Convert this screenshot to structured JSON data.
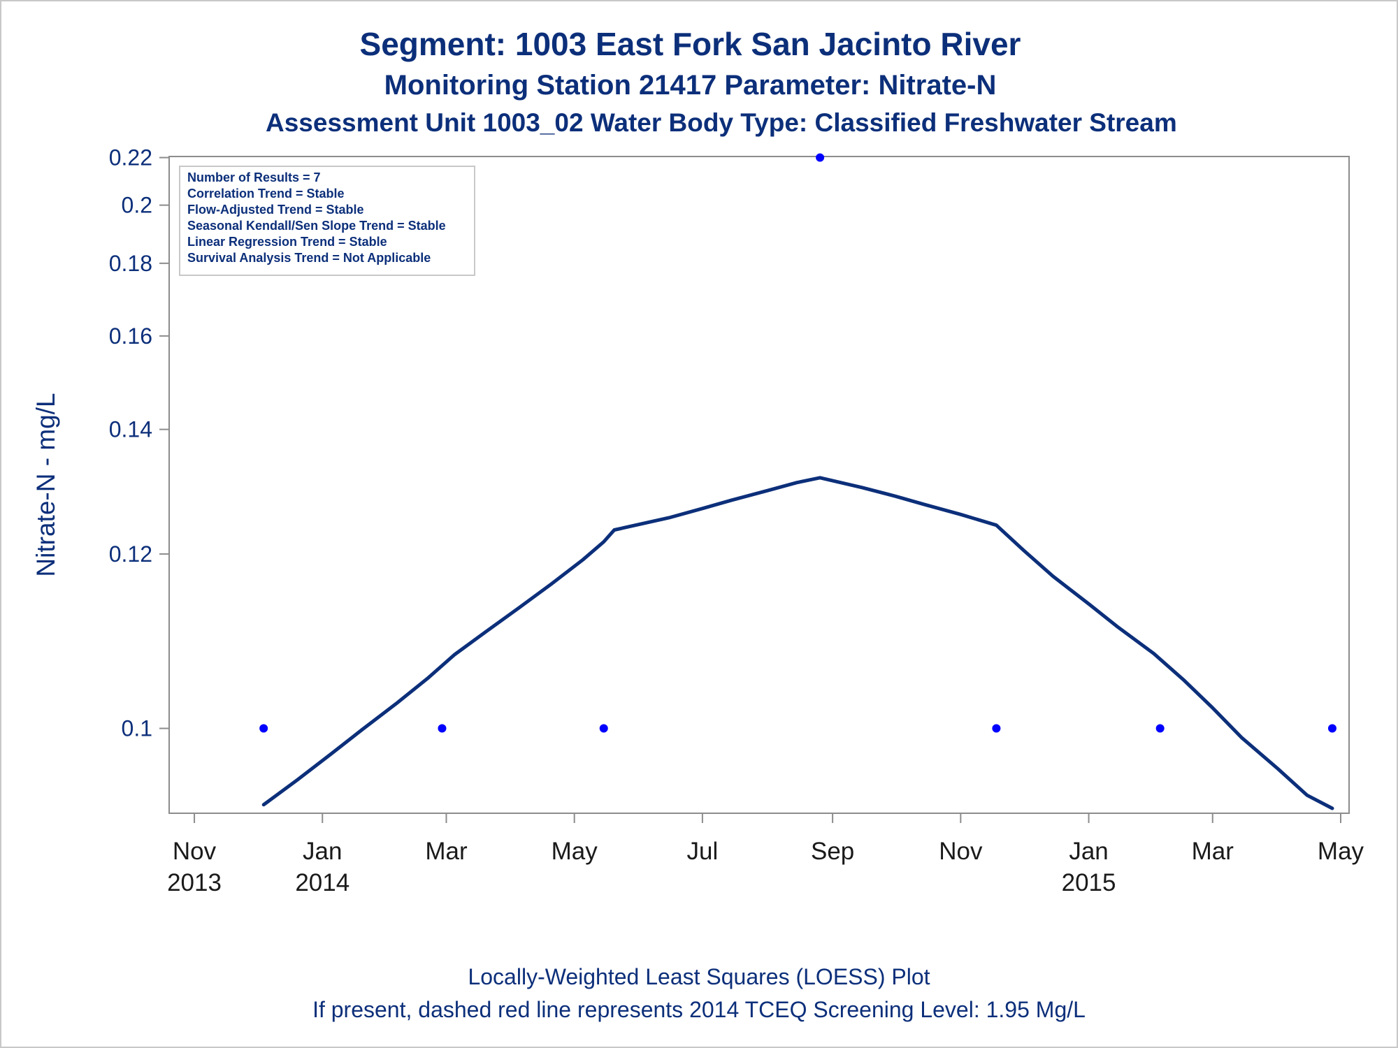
{
  "titles": {
    "line1": "Segment: 1003  East Fork San Jacinto River",
    "line2": "Monitoring Station 21417 Parameter: Nitrate-N",
    "line3": "Assessment Unit 1003_02   Water Body Type: Classified Freshwater Stream"
  },
  "footnotes": {
    "line1": "Locally-Weighted Least Squares (LOESS) Plot",
    "line2": "If present, dashed red line represents 2014 TCEQ Screening Level: 1.95 Mg/L"
  },
  "colors": {
    "text": "#0c2f7a",
    "loess_line": "#0c2f7a",
    "points": "#0000ff",
    "axis": "#8c8c8c",
    "tick_label": "#1a1a1a"
  },
  "chart_data": {
    "type": "scatter",
    "ylabel": "Nitrate-N - mg/L",
    "xlabel": "",
    "y_scale": "reciprocal",
    "ylim": [
      0.0925,
      0.2205
    ],
    "xlim": [
      "2013-10-20",
      "2015-05-05"
    ],
    "y_ticks": [
      {
        "value": 0.1,
        "label": "0.1"
      },
      {
        "value": 0.12,
        "label": "0.12"
      },
      {
        "value": 0.14,
        "label": "0.14"
      },
      {
        "value": 0.16,
        "label": "0.16"
      },
      {
        "value": 0.18,
        "label": "0.18"
      },
      {
        "value": 0.2,
        "label": "0.2"
      },
      {
        "value": 0.22,
        "label": "0.22"
      }
    ],
    "x_ticks": [
      {
        "date": "2013-11-01",
        "label": "Nov",
        "year": "2013"
      },
      {
        "date": "2014-01-01",
        "label": "Jan",
        "year": "2014"
      },
      {
        "date": "2014-03-01",
        "label": "Mar",
        "year": ""
      },
      {
        "date": "2014-05-01",
        "label": "May",
        "year": ""
      },
      {
        "date": "2014-07-01",
        "label": "Jul",
        "year": ""
      },
      {
        "date": "2014-09-01",
        "label": "Sep",
        "year": ""
      },
      {
        "date": "2014-11-01",
        "label": "Nov",
        "year": ""
      },
      {
        "date": "2015-01-01",
        "label": "Jan",
        "year": "2015"
      },
      {
        "date": "2015-03-01",
        "label": "Mar",
        "year": ""
      },
      {
        "date": "2015-05-01",
        "label": "May",
        "year": ""
      }
    ],
    "series": [
      {
        "kind": "points",
        "points": [
          {
            "x": "2013-12-04",
            "y": 0.1
          },
          {
            "x": "2014-02-27",
            "y": 0.1
          },
          {
            "x": "2014-05-15",
            "y": 0.1
          },
          {
            "x": "2014-08-26",
            "y": 0.22
          },
          {
            "x": "2014-11-18",
            "y": 0.1
          },
          {
            "x": "2015-02-04",
            "y": 0.1
          },
          {
            "x": "2015-04-27",
            "y": 0.1
          }
        ]
      },
      {
        "kind": "loess",
        "points": [
          {
            "x": "2013-12-04",
            "y": 0.0932
          },
          {
            "x": "2013-12-20",
            "y": 0.0953
          },
          {
            "x": "2014-01-05",
            "y": 0.0976
          },
          {
            "x": "2014-01-20",
            "y": 0.0999
          },
          {
            "x": "2014-02-05",
            "y": 0.1024
          },
          {
            "x": "2014-02-20",
            "y": 0.105
          },
          {
            "x": "2014-03-05",
            "y": 0.1076
          },
          {
            "x": "2014-03-20",
            "y": 0.1102
          },
          {
            "x": "2014-04-05",
            "y": 0.1131
          },
          {
            "x": "2014-04-20",
            "y": 0.116
          },
          {
            "x": "2014-05-05",
            "y": 0.1192
          },
          {
            "x": "2014-05-15",
            "y": 0.1217
          },
          {
            "x": "2014-05-20",
            "y": 0.1234
          },
          {
            "x": "2014-06-15",
            "y": 0.1252
          },
          {
            "x": "2014-07-01",
            "y": 0.1266
          },
          {
            "x": "2014-07-15",
            "y": 0.1279
          },
          {
            "x": "2014-08-01",
            "y": 0.1294
          },
          {
            "x": "2014-08-15",
            "y": 0.1307
          },
          {
            "x": "2014-08-26",
            "y": 0.1315
          },
          {
            "x": "2014-09-15",
            "y": 0.1299
          },
          {
            "x": "2014-10-01",
            "y": 0.1285
          },
          {
            "x": "2014-10-15",
            "y": 0.1272
          },
          {
            "x": "2014-11-01",
            "y": 0.1257
          },
          {
            "x": "2014-11-18",
            "y": 0.1241
          },
          {
            "x": "2014-12-01",
            "y": 0.1205
          },
          {
            "x": "2014-12-15",
            "y": 0.117
          },
          {
            "x": "2015-01-01",
            "y": 0.1135
          },
          {
            "x": "2015-01-15",
            "y": 0.1107
          },
          {
            "x": "2015-02-01",
            "y": 0.1077
          },
          {
            "x": "2015-02-15",
            "y": 0.1049
          },
          {
            "x": "2015-03-01",
            "y": 0.102
          },
          {
            "x": "2015-03-15",
            "y": 0.0991
          },
          {
            "x": "2015-04-01",
            "y": 0.0963
          },
          {
            "x": "2015-04-15",
            "y": 0.094
          },
          {
            "x": "2015-04-27",
            "y": 0.0929
          }
        ]
      }
    ],
    "legend_position": "top-left",
    "inset_stats": [
      "Number of Results = 7",
      "Correlation Trend = Stable",
      "Flow-Adjusted Trend = Stable",
      "Seasonal Kendall/Sen Slope Trend = Stable",
      "Linear Regression Trend = Stable",
      "Survival Analysis Trend = Not Applicable"
    ],
    "grid": false
  }
}
